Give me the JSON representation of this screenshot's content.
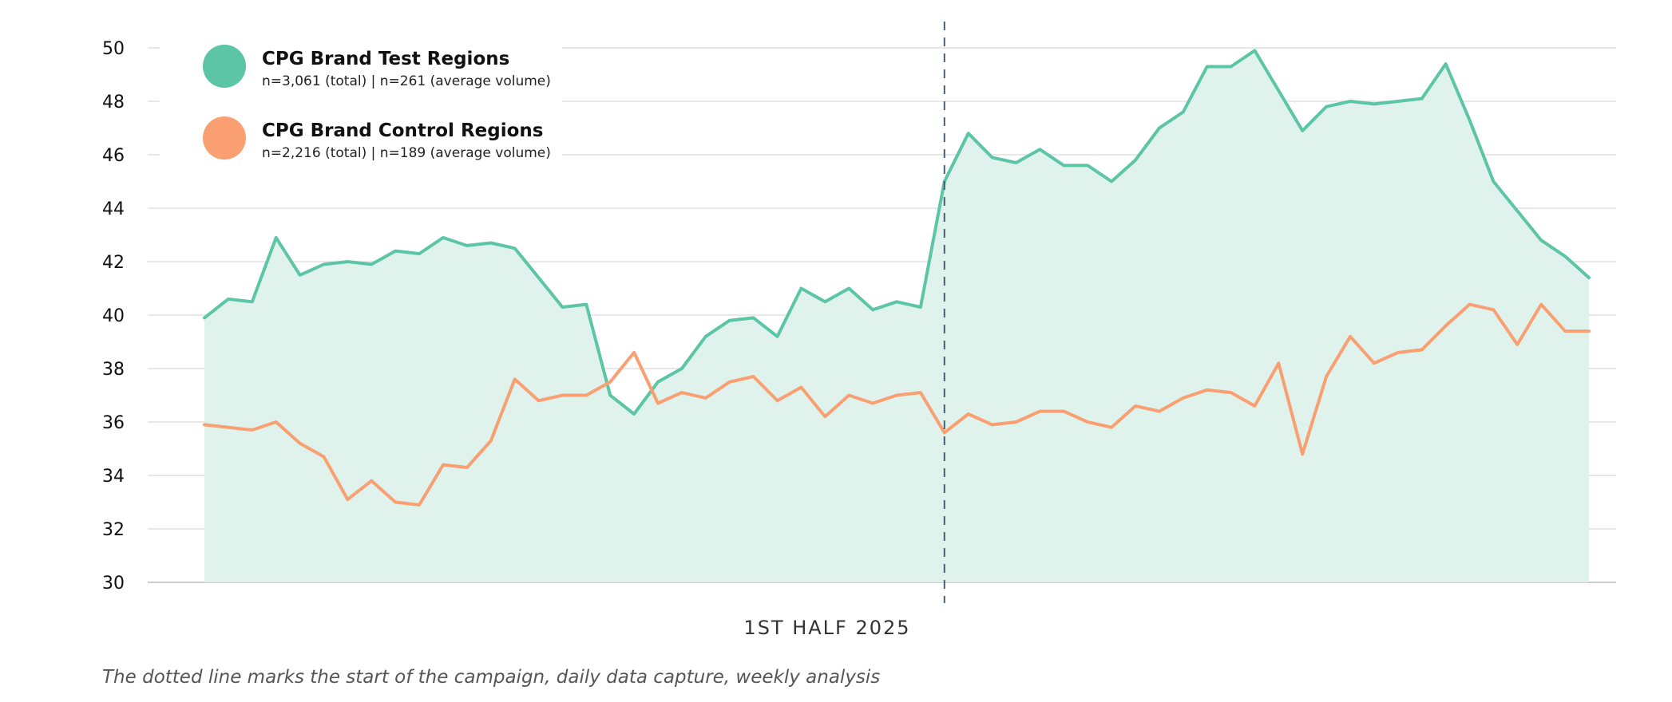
{
  "chart_data": {
    "type": "area",
    "xlabel": "1ST HALF 2025",
    "ylabel": "",
    "ylim": [
      30,
      50
    ],
    "yticks": [
      30,
      32,
      34,
      36,
      38,
      40,
      42,
      44,
      46,
      48,
      50
    ],
    "grid": true,
    "legend_position": "top-left",
    "campaign_start_index": 31,
    "caption": "The dotted line marks the start of the campaign, daily data capture, weekly analysis",
    "series": [
      {
        "name": "CPG Brand Test Regions",
        "detail": "n=3,061 (total) | n=261 (average volume)",
        "color": "#5bc5a5",
        "fill": "#dff2ec",
        "values": [
          39.9,
          40.6,
          40.5,
          42.9,
          41.5,
          41.9,
          42.0,
          41.9,
          42.4,
          42.3,
          42.9,
          42.6,
          42.7,
          42.5,
          41.4,
          40.3,
          40.4,
          37.0,
          36.3,
          37.5,
          38.0,
          39.2,
          39.8,
          39.9,
          39.2,
          41.0,
          40.5,
          41.0,
          40.2,
          40.5,
          40.3,
          45.0,
          46.8,
          45.9,
          45.7,
          46.2,
          45.6,
          45.6,
          45.0,
          45.8,
          47.0,
          47.6,
          49.3,
          49.3,
          49.9,
          48.4,
          46.9,
          47.8,
          48.0,
          47.9,
          48.0,
          48.1,
          49.4,
          47.3,
          45.0,
          43.9,
          42.8,
          42.2,
          41.4
        ]
      },
      {
        "name": "CPG Brand Control Regions",
        "detail": "n=2,216 (total) | n=189 (average volume)",
        "color": "#f99f72",
        "values": [
          35.9,
          35.8,
          35.7,
          36.0,
          35.2,
          34.7,
          33.1,
          33.8,
          33.0,
          32.9,
          34.4,
          34.3,
          35.3,
          37.6,
          36.8,
          37.0,
          37.0,
          37.5,
          38.6,
          36.7,
          37.1,
          36.9,
          37.5,
          37.7,
          36.8,
          37.3,
          36.2,
          37.0,
          36.7,
          37.0,
          37.1,
          35.6,
          36.3,
          35.9,
          36.0,
          36.4,
          36.4,
          36.0,
          35.8,
          36.6,
          36.4,
          36.9,
          37.2,
          37.1,
          36.6,
          38.2,
          34.8,
          37.7,
          39.2,
          38.2,
          38.6,
          38.7,
          39.6,
          40.4,
          40.2,
          38.9,
          40.4,
          39.4,
          39.4
        ]
      }
    ]
  }
}
